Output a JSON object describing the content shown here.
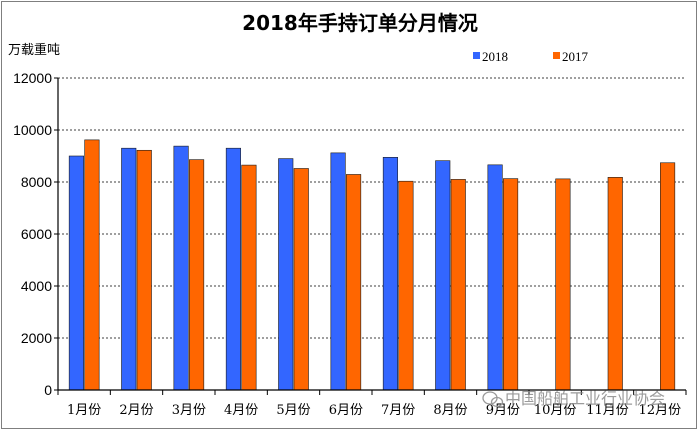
{
  "chart_data": {
    "type": "bar",
    "title": "2018年手持订单分月情况",
    "unit_label": "万载重吨",
    "categories": [
      "1月份",
      "2月份",
      "3月份",
      "4月份",
      "5月份",
      "6月份",
      "7月份",
      "8月份",
      "9月份",
      "10月份",
      "11月份",
      "12月份"
    ],
    "series": [
      {
        "name": "2018",
        "color": "#3366ff",
        "values": [
          9000,
          9300,
          9380,
          9300,
          8900,
          9120,
          8950,
          8820,
          8660,
          null,
          null,
          null
        ]
      },
      {
        "name": "2017",
        "color": "#ff6600",
        "values": [
          9620,
          9220,
          8860,
          8650,
          8520,
          8290,
          8030,
          8100,
          8130,
          8120,
          8180,
          8740
        ]
      }
    ],
    "yticks": [
      "0",
      "2000",
      "4000",
      "6000",
      "8000",
      "10000",
      "12000"
    ],
    "ylim": [
      0,
      12000
    ],
    "grid": "dashed-horizontal",
    "legend_position": "top-right"
  },
  "watermark": "中国船舶工业行业协会"
}
